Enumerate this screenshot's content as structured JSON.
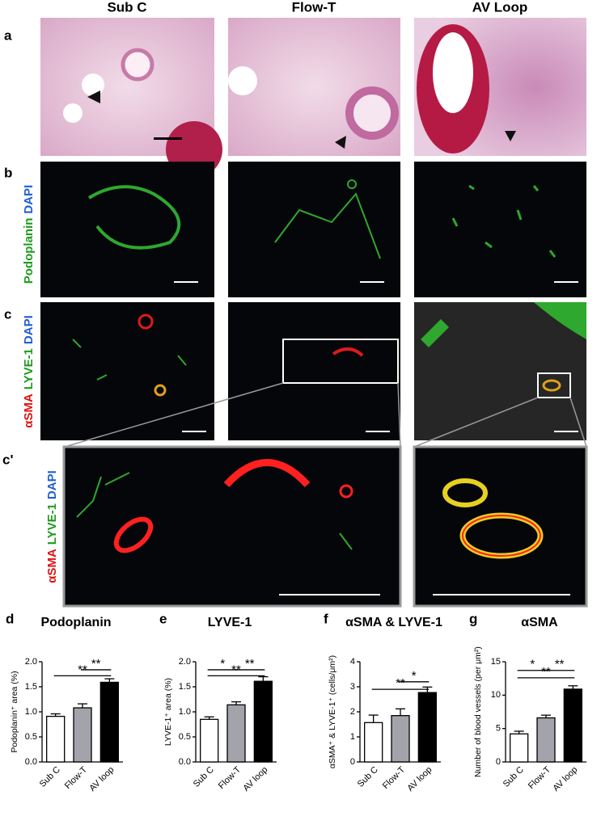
{
  "figure": {
    "columns": [
      "Sub C",
      "Flow-T",
      "AV Loop"
    ],
    "rows": [
      "a",
      "b",
      "c",
      "c'"
    ],
    "stains": {
      "b": [
        {
          "text": "Podoplanin",
          "color": "#1f9a1f"
        },
        {
          "text": "DAPI",
          "color": "#1f5fd0"
        }
      ],
      "c": [
        {
          "text": "αSMA",
          "color": "#e01010"
        },
        {
          "text": "LYVE-1",
          "color": "#1f9a1f"
        },
        {
          "text": "DAPI",
          "color": "#1f5fd0"
        }
      ],
      "c2": [
        {
          "text": "αSMA",
          "color": "#e01010"
        },
        {
          "text": "LYVE-1",
          "color": "#1f9a1f"
        },
        {
          "text": "DAPI",
          "color": "#1f5fd0"
        }
      ]
    }
  },
  "chart_data": [
    {
      "type": "bar",
      "panel_label": "d",
      "title": "Podoplanin",
      "y_label": "Podoplanin⁺ area (%)",
      "categories": [
        "Sub C",
        "Flow-T",
        "AV loop"
      ],
      "values": [
        0.91,
        1.08,
        1.59
      ],
      "errors": [
        0.05,
        0.08,
        0.07
      ],
      "colors": [
        "#ffffff",
        "#a3a3ab",
        "#000000"
      ],
      "ylim": [
        0,
        2.0
      ],
      "yticks": [
        {
          "value": 0,
          "label": "0.0"
        },
        {
          "value": 0.5,
          "label": "0.5"
        },
        {
          "value": 1.0,
          "label": "1.0"
        },
        {
          "value": 1.5,
          "label": "1.5"
        },
        {
          "value": 2.0,
          "label": "2.0"
        }
      ],
      "annotations": [
        {
          "text": "**",
          "pair": [
            "Flow-T",
            "AV loop"
          ],
          "y": 1.84
        },
        {
          "text": "**",
          "pair": [
            "Sub C",
            "AV loop"
          ],
          "y": 1.72
        }
      ]
    },
    {
      "type": "bar",
      "panel_label": "e",
      "title": "LYVE-1",
      "y_label": "LYVE-1⁺ area (%)",
      "categories": [
        "Sub C",
        "Flow-T",
        "AV loop"
      ],
      "values": [
        0.85,
        1.14,
        1.61
      ],
      "errors": [
        0.05,
        0.06,
        0.09
      ],
      "colors": [
        "#ffffff",
        "#a3a3ab",
        "#000000"
      ],
      "ylim": [
        0,
        2.0
      ],
      "yticks": [
        {
          "value": 0,
          "label": "0.0"
        },
        {
          "value": 0.5,
          "label": "0.5"
        },
        {
          "value": 1.0,
          "label": "1.0"
        },
        {
          "value": 1.5,
          "label": "1.5"
        },
        {
          "value": 2.0,
          "label": "2.0"
        }
      ],
      "annotations": [
        {
          "text": "*",
          "pair": [
            "Sub C",
            "Flow-T"
          ],
          "y": 1.84
        },
        {
          "text": "**",
          "pair": [
            "Flow-T",
            "AV loop"
          ],
          "y": 1.84
        },
        {
          "text": "**",
          "pair": [
            "Sub C",
            "AV loop"
          ],
          "y": 1.72
        }
      ]
    },
    {
      "type": "bar",
      "panel_label": "f",
      "title": "αSMA & LYVE-1",
      "y_label": "αSMA⁺ & LYVE-1⁺ (cells/μm²)",
      "categories": [
        "Sub C",
        "Flow-T",
        "AV loop"
      ],
      "values": [
        1.57,
        1.85,
        2.77
      ],
      "errors": [
        0.3,
        0.27,
        0.22
      ],
      "colors": [
        "#ffffff",
        "#a3a3ab",
        "#000000"
      ],
      "ylim": [
        0,
        4
      ],
      "yticks": [
        0,
        1,
        2,
        3,
        4
      ],
      "annotations": [
        {
          "text": "*",
          "pair": [
            "Flow-T",
            "AV loop"
          ],
          "y": 3.2
        },
        {
          "text": "**",
          "pair": [
            "Sub C",
            "AV loop"
          ],
          "y": 2.9
        }
      ]
    },
    {
      "type": "bar",
      "panel_label": "g",
      "title": "αSMA",
      "y_label": "Number of blood vessels (per μm²)",
      "categories": [
        "Sub C",
        "Flow-T",
        "AV loop"
      ],
      "values": [
        4.2,
        6.6,
        10.9
      ],
      "errors": [
        0.4,
        0.4,
        0.5
      ],
      "colors": [
        "#ffffff",
        "#a3a3ab",
        "#000000"
      ],
      "ylim": [
        0,
        15
      ],
      "yticks": [
        0,
        5,
        10,
        15
      ],
      "annotations": [
        {
          "text": "*",
          "pair": [
            "Sub C",
            "Flow-T"
          ],
          "y": 13.7
        },
        {
          "text": "**",
          "pair": [
            "Flow-T",
            "AV loop"
          ],
          "y": 13.7
        },
        {
          "text": "**",
          "pair": [
            "Sub C",
            "AV loop"
          ],
          "y": 12.6
        }
      ]
    }
  ]
}
